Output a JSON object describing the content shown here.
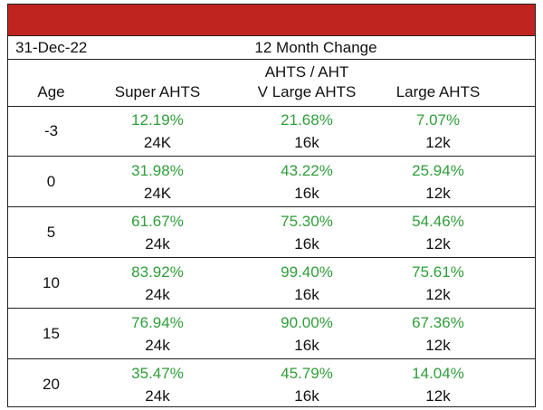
{
  "header": {
    "date": "31-Dec-22",
    "title": "12 Month Change"
  },
  "columns": {
    "age": "Age",
    "super": "Super AHTS",
    "vlarge_line1": "AHTS / AHT",
    "vlarge_line2": "V Large AHTS",
    "large": "Large AHTS"
  },
  "rows": [
    {
      "age": "-3",
      "super_pct": "12.19%",
      "super_size": "24K",
      "vlarge_pct": "21.68%",
      "vlarge_size": "16k",
      "large_pct": "7.07%",
      "large_size": "12k"
    },
    {
      "age": "0",
      "super_pct": "31.98%",
      "super_size": "24K",
      "vlarge_pct": "43.22%",
      "vlarge_size": "16k",
      "large_pct": "25.94%",
      "large_size": "12k"
    },
    {
      "age": "5",
      "super_pct": "61.67%",
      "super_size": "24k",
      "vlarge_pct": "75.30%",
      "vlarge_size": "16k",
      "large_pct": "54.46%",
      "large_size": "12k"
    },
    {
      "age": "10",
      "super_pct": "83.92%",
      "super_size": "24k",
      "vlarge_pct": "99.40%",
      "vlarge_size": "16k",
      "large_pct": "75.61%",
      "large_size": "12k"
    },
    {
      "age": "15",
      "super_pct": "76.94%",
      "super_size": "24k",
      "vlarge_pct": "90.00%",
      "vlarge_size": "16k",
      "large_pct": "67.36%",
      "large_size": "12k"
    },
    {
      "age": "20",
      "super_pct": "35.47%",
      "super_size": "24k",
      "vlarge_pct": "45.79%",
      "vlarge_size": "16k",
      "large_pct": "14.04%",
      "large_size": "12k"
    }
  ],
  "colors": {
    "header_bar": "#c0241f",
    "positive_value": "#2f9e3a"
  }
}
